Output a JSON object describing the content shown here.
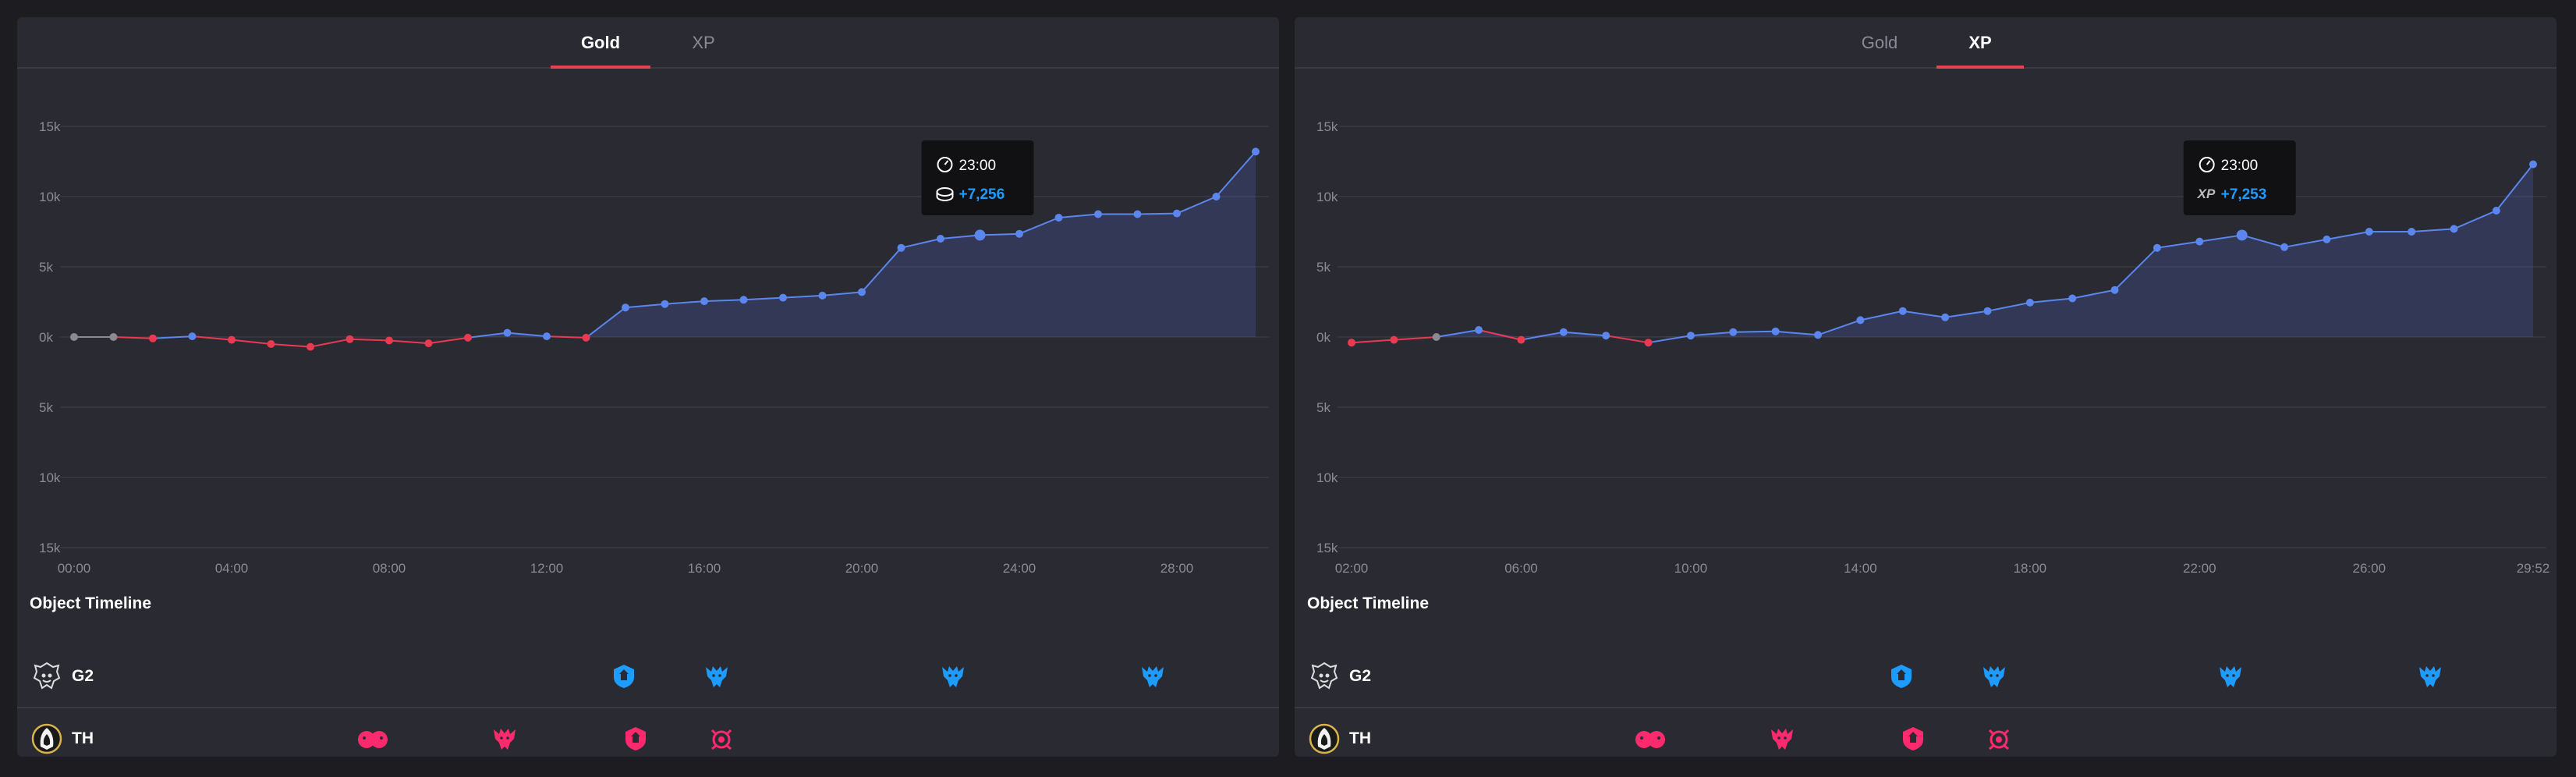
{
  "colors": {
    "blue": "#5b86ee",
    "red": "#ea3a52",
    "grey": "#8a8a93",
    "accent_blue": "#1e9bff",
    "accent_pink": "#ff2a6d",
    "tab_underline": "#e8414f"
  },
  "panels": [
    {
      "tabs": [
        {
          "label": "Gold",
          "active": true
        },
        {
          "label": "XP",
          "active": false
        }
      ],
      "tooltip": {
        "time": "23:00",
        "value": "+7,256",
        "icon": "coins-icon"
      },
      "object_timeline": {
        "title": "Object Timeline",
        "teams": [
          {
            "name": "G2",
            "logo": "g2-logo-icon",
            "objectives": [
              "tower-icon",
              "dragon-icon",
              "dragon-icon",
              "dragon-icon"
            ]
          },
          {
            "name": "TH",
            "logo": "th-logo-icon",
            "objectives": [
              "grubs-icon",
              "dragon-icon",
              "tower-icon",
              "herald-icon"
            ]
          }
        ]
      }
    },
    {
      "tabs": [
        {
          "label": "Gold",
          "active": false
        },
        {
          "label": "XP",
          "active": true
        }
      ],
      "tooltip": {
        "time": "23:00",
        "value": "+7,253",
        "icon": "xp-label",
        "icon_text": "XP"
      },
      "object_timeline": {
        "title": "Object Timeline",
        "teams": [
          {
            "name": "G2",
            "logo": "g2-logo-icon",
            "objectives": [
              "tower-icon",
              "dragon-icon",
              "dragon-icon",
              "dragon-icon"
            ]
          },
          {
            "name": "TH",
            "logo": "th-logo-icon",
            "objectives": [
              "grubs-icon",
              "dragon-icon",
              "tower-icon",
              "herald-icon"
            ]
          }
        ]
      }
    }
  ],
  "chart_data": [
    {
      "type": "area",
      "series": [
        {
          "x": [
            "00:00",
            "01:00",
            "02:00",
            "03:00",
            "04:00",
            "05:00",
            "06:00",
            "07:00",
            "08:00",
            "09:00",
            "10:00",
            "11:00",
            "12:00",
            "13:00",
            "14:00",
            "15:00",
            "16:00",
            "17:00",
            "18:00",
            "19:00",
            "20:00",
            "21:00",
            "22:00",
            "23:00",
            "24:00",
            "25:00",
            "26:00",
            "27:00",
            "28:00",
            "29:00",
            "30:00"
          ],
          "values": [
            0,
            0,
            -100,
            50,
            -200,
            -500,
            -700,
            -150,
            -250,
            -450,
            -50,
            300,
            50,
            -50,
            2100,
            2350,
            2550,
            2650,
            2800,
            2950,
            3200,
            6350,
            7000,
            7256,
            7350,
            8500,
            8750,
            8750,
            8800,
            10000,
            13200
          ]
        }
      ],
      "ylim": [
        -15000,
        15000
      ],
      "yticks": [
        "15k",
        "10k",
        "5k",
        "0k",
        "5k",
        "10k",
        "15k"
      ],
      "xticks": [
        "00:00",
        "04:00",
        "08:00",
        "12:00",
        "16:00",
        "20:00",
        "24:00",
        "28:00"
      ],
      "grid": true,
      "highlight": "23:00"
    },
    {
      "type": "area",
      "series": [
        {
          "x": [
            "02:00",
            "03:00",
            "04:00",
            "05:00",
            "06:00",
            "07:00",
            "08:00",
            "09:00",
            "10:00",
            "11:00",
            "12:00",
            "13:00",
            "14:00",
            "15:00",
            "16:00",
            "17:00",
            "18:00",
            "19:00",
            "20:00",
            "21:00",
            "22:00",
            "23:00",
            "24:00",
            "25:00",
            "26:00",
            "27:00",
            "28:00",
            "29:00",
            "29:52"
          ],
          "values": [
            -400,
            -200,
            0,
            500,
            -200,
            350,
            100,
            -400,
            100,
            350,
            400,
            150,
            1200,
            1850,
            1400,
            1850,
            2450,
            2750,
            3350,
            6350,
            6800,
            7253,
            6400,
            6950,
            7500,
            7500,
            7700,
            9000,
            12300
          ]
        }
      ],
      "ylim": [
        -15000,
        15000
      ],
      "yticks": [
        "15k",
        "10k",
        "5k",
        "0k",
        "5k",
        "10k",
        "15k"
      ],
      "xticks": [
        "02:00",
        "06:00",
        "10:00",
        "14:00",
        "18:00",
        "22:00",
        "26:00",
        "29:52"
      ],
      "grid": true,
      "highlight": "23:00"
    }
  ]
}
